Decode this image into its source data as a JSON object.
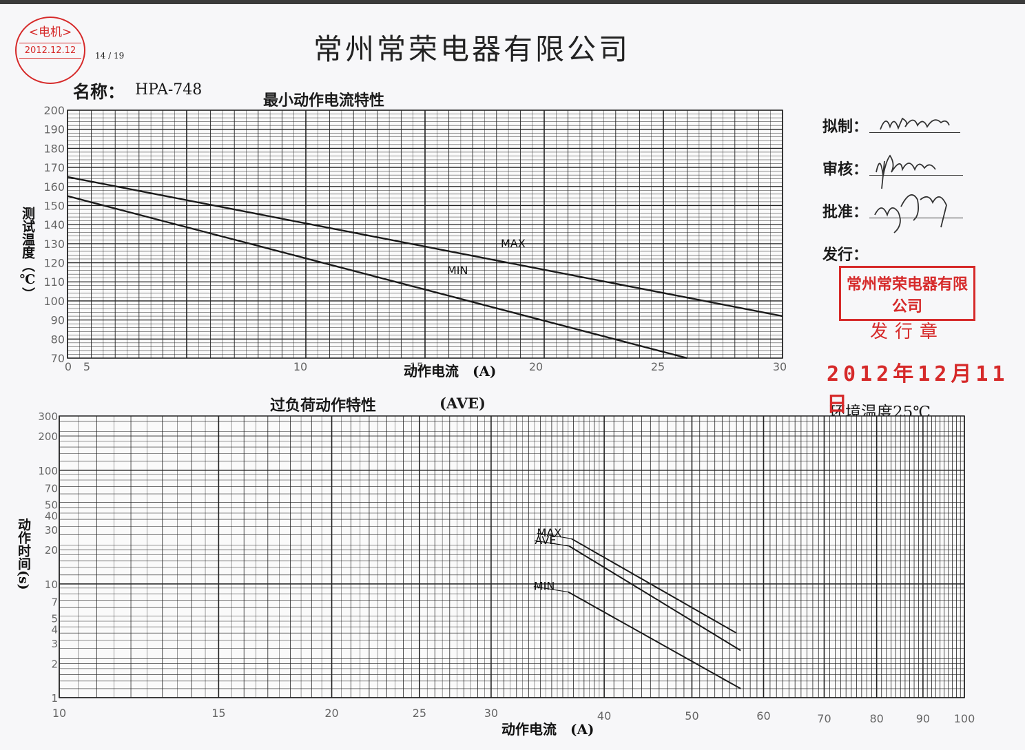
{
  "header": {
    "company": "常州常荣电器有限公司",
    "page_no": "14 / 19",
    "name_label": "名称：",
    "model": "HPA-748",
    "receipt_stamp_line1": "<电机>",
    "receipt_stamp_line2": "2012.12.12"
  },
  "approval": {
    "drafted_label": "拟制：",
    "reviewed_label": "审核：",
    "approved_label": "批准：",
    "issued_label": "发行：",
    "issue_stamp_line1": "常州常荣电器有限公司",
    "issue_stamp_line2": "发行章",
    "issue_date": "2012年12月11日"
  },
  "ambient": "环境温度25℃",
  "chart_data": [
    {
      "type": "line",
      "title": "最小动作电流特性",
      "xlabel": "动作电流　(A)",
      "ylabel": "测试温度（℃）",
      "xlim": [
        0,
        30
      ],
      "ylim": [
        70,
        200
      ],
      "x_ticks": [
        "0",
        "5",
        "10",
        "15",
        "20",
        "25",
        "30"
      ],
      "y_ticks": [
        70,
        80,
        90,
        100,
        110,
        120,
        130,
        140,
        150,
        160,
        170,
        180,
        190,
        200
      ],
      "grid": true,
      "series": [
        {
          "name": "MAX",
          "x": [
            0,
            30
          ],
          "y": [
            165,
            92
          ]
        },
        {
          "name": "MIN",
          "x": [
            0,
            26
          ],
          "y": [
            155,
            70
          ]
        }
      ]
    },
    {
      "type": "line",
      "title": "过负荷动作特性",
      "subtitle": "(AVE)",
      "xlabel": "动作电流　(A)",
      "ylabel": "动作时间(s)",
      "x_scale": "log",
      "y_scale": "log",
      "xlim": [
        10,
        100
      ],
      "ylim": [
        1,
        300
      ],
      "x_ticks": [
        10,
        15,
        20,
        25,
        30,
        40,
        50,
        60,
        70,
        80,
        90,
        100
      ],
      "y_ticks": [
        1,
        2,
        3,
        4,
        5,
        7,
        10,
        20,
        30,
        40,
        50,
        70,
        100,
        200,
        300
      ],
      "grid": true,
      "series": [
        {
          "name": "MAX",
          "x": [
            36.8,
            56.0
          ],
          "y": [
            25,
            3.7
          ]
        },
        {
          "name": "AVE",
          "x": [
            36.6,
            56.6
          ],
          "y": [
            21.5,
            2.6
          ]
        },
        {
          "name": "MIN",
          "x": [
            36.5,
            56.6
          ],
          "y": [
            8.5,
            1.2
          ]
        }
      ]
    }
  ]
}
